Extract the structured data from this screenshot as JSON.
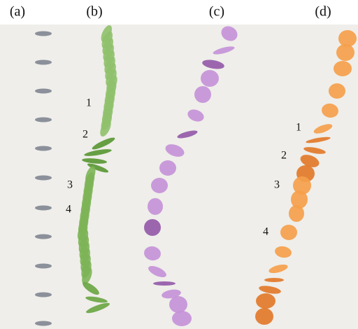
{
  "panels": [
    {
      "label": "(a)"
    },
    {
      "label": "(b)",
      "annotations": [
        "1",
        "2",
        "3",
        "4"
      ]
    },
    {
      "label": "(c)"
    },
    {
      "label": "(d)",
      "annotations": [
        "1",
        "2",
        "3",
        "4"
      ]
    }
  ]
}
